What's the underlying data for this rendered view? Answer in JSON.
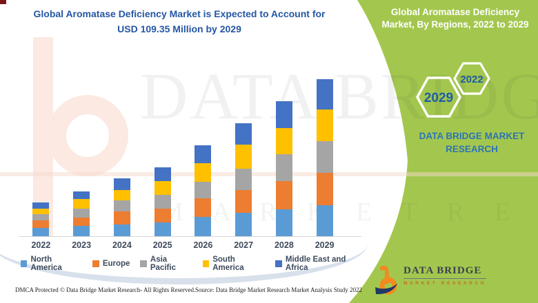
{
  "header": {
    "title_line1": "Global Aromatase Deficiency Market is Expected to Account for",
    "title_line2": "USD 109.35 Million by 2029"
  },
  "side_panel": {
    "heading": "Global Aromatase Deficiency Market, By Regions, 2022 to 2029",
    "bg_color": "#A3C74E",
    "heading_color": "#FFFFFF",
    "hexagons": [
      {
        "label": "2029"
      },
      {
        "label": "2022"
      }
    ],
    "hexagon_text_color": "#1E5CA8",
    "brand_text": "DATA BRIDGE MARKET RESEARCH",
    "brand_color": "#2E74B5"
  },
  "chart_data": {
    "type": "bar",
    "stacked": true,
    "unit": "USD Million",
    "title": "Global Aromatase Deficiency Market, By Regions, 2022 to 2029",
    "xlabel": "",
    "ylabel": "",
    "grid": false,
    "legend_position": "bottom",
    "categories": [
      "2022",
      "2023",
      "2024",
      "2025",
      "2026",
      "2027",
      "2028",
      "2029"
    ],
    "series": [
      {
        "name": "North America",
        "color": "#5B9BD5",
        "values": [
          5.9,
          7.0,
          8.3,
          9.6,
          13.2,
          16.4,
          18.7,
          21.5
        ]
      },
      {
        "name": "Europe",
        "color": "#ED7D31",
        "values": [
          5.3,
          6.1,
          8.8,
          9.6,
          13.2,
          15.5,
          19.6,
          22.4
        ]
      },
      {
        "name": "Asia Pacific",
        "color": "#A5A5A5",
        "values": [
          4.0,
          5.9,
          8.0,
          9.6,
          11.2,
          14.9,
          18.8,
          22.4
        ]
      },
      {
        "name": "South America",
        "color": "#FFC000",
        "values": [
          4.0,
          6.9,
          7.2,
          9.6,
          13.1,
          16.8,
          18.3,
          21.8
        ]
      },
      {
        "name": "Middle East and Africa",
        "color": "#4472C4",
        "values": [
          4.3,
          5.4,
          8.0,
          9.5,
          12.5,
          15.2,
          18.3,
          21.3
        ]
      }
    ],
    "totals_estimated": [
      23.5,
      31.3,
      40.3,
      47.9,
      63.2,
      78.8,
      93.7,
      109.35
    ],
    "annotation": "USD 109.35 Million by 2029"
  },
  "watermarks": {
    "brand_big": "DATA BRIDGE",
    "brand_row2": "M A R K E T  R E S E A R C H"
  },
  "logo": {
    "name": "DATA BRIDGE",
    "sub": "MARKET RESEARCH"
  },
  "footer": {
    "left": "DMCA Protected © Data Bridge Market Research- All Rights Reserved.",
    "source": "Source: Data Bridge Market Research Market Analysis Study 2022"
  }
}
